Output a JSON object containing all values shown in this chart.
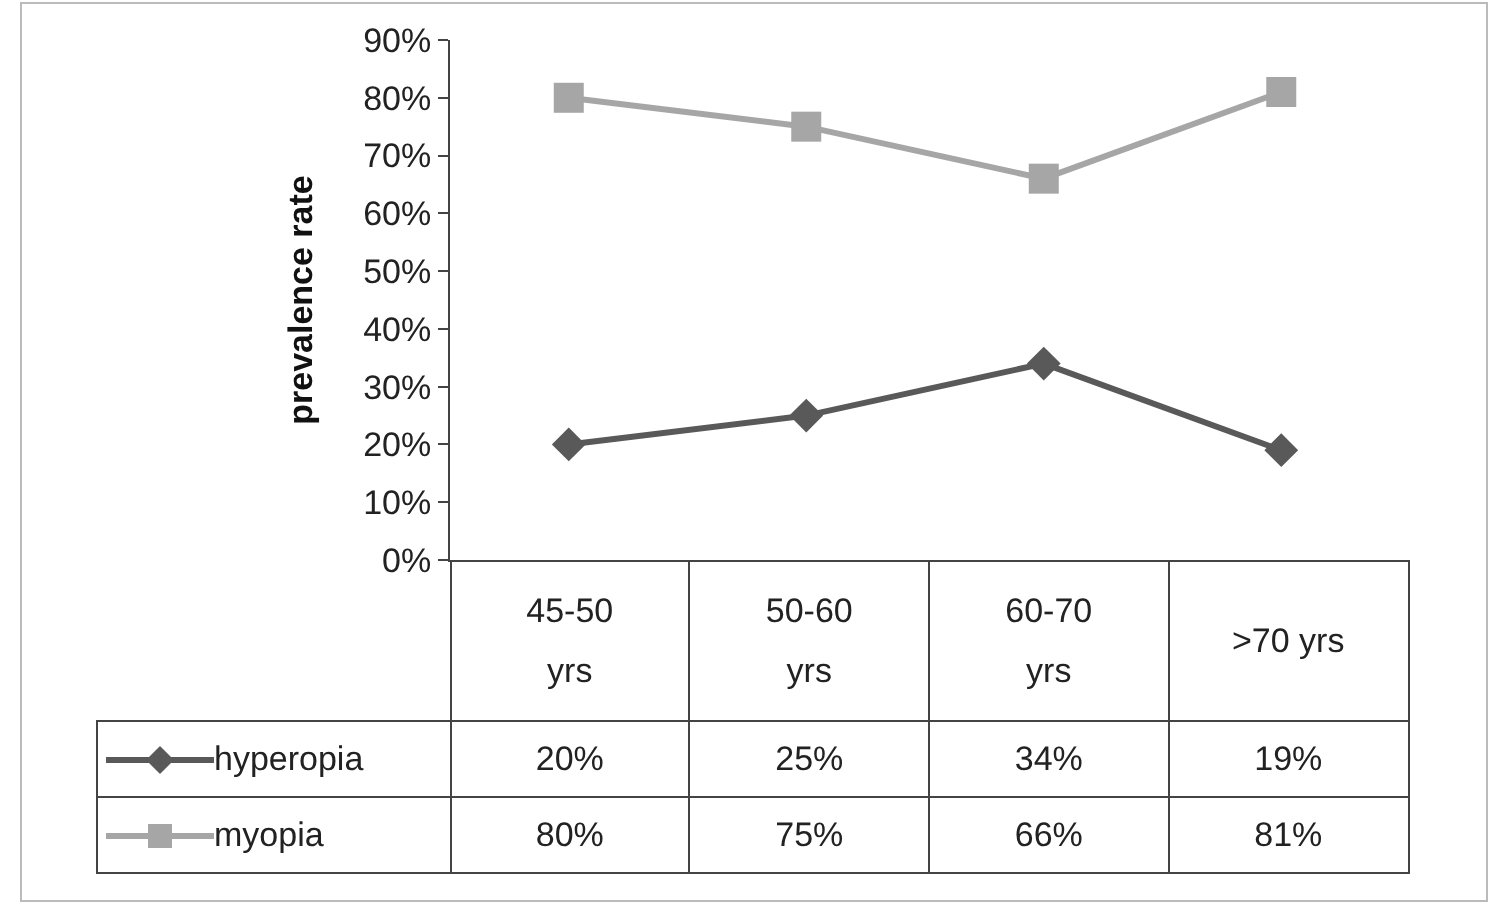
{
  "chart_data": {
    "type": "line",
    "ylabel": "prevalence rate",
    "categories": [
      "45-50 yrs",
      "50-60 yrs",
      "60-70 yrs",
      ">70 yrs"
    ],
    "series": [
      {
        "name": "hyperopia",
        "color": "#595959",
        "marker": "diamond",
        "values": [
          20,
          25,
          34,
          19
        ],
        "value_labels": [
          "20%",
          "25%",
          "34%",
          "19%"
        ]
      },
      {
        "name": "myopia",
        "color": "#a6a6a6",
        "marker": "square",
        "values": [
          80,
          75,
          66,
          81
        ],
        "value_labels": [
          "80%",
          "75%",
          "66%",
          "81%"
        ]
      }
    ],
    "ylim": [
      0,
      90
    ],
    "yticks": [
      {
        "value": 0,
        "label": "0%"
      },
      {
        "value": 10,
        "label": "10%"
      },
      {
        "value": 20,
        "label": "20%"
      },
      {
        "value": 30,
        "label": "30%"
      },
      {
        "value": 40,
        "label": "40%"
      },
      {
        "value": 50,
        "label": "50%"
      },
      {
        "value": 60,
        "label": "60%"
      },
      {
        "value": 70,
        "label": "70%"
      },
      {
        "value": 80,
        "label": "80%"
      },
      {
        "value": 90,
        "label": "90%"
      }
    ],
    "line_style": "solid",
    "legend": "bottom"
  }
}
